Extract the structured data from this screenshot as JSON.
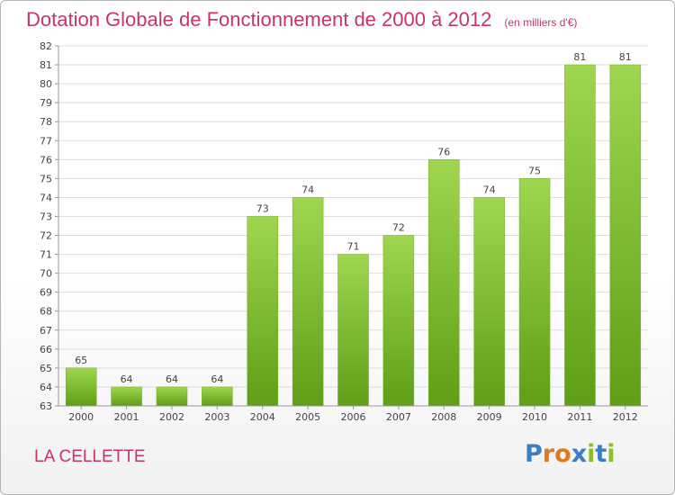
{
  "title": "Dotation Globale de Fonctionnement de 2000 à 2012",
  "unit": "(en milliers d'€)",
  "commune": "LA CELLETTE",
  "logo": {
    "text": "Proxiti",
    "letters": [
      "P",
      "r",
      "o",
      "x",
      "i",
      "t",
      "i"
    ],
    "colors": [
      "#3a7fc4",
      "#e07a1f",
      "#e07a1f",
      "#3a7fc4",
      "#8cbf2a",
      "#3a7fc4",
      "#8cbf2a"
    ]
  },
  "colors": {
    "title": "#c8336a",
    "bar_top": "#9fd650",
    "bar_bottom": "#5f9e16",
    "grid": "#dddddd"
  },
  "chart_data": {
    "type": "bar",
    "categories": [
      "2000",
      "2001",
      "2002",
      "2003",
      "2004",
      "2005",
      "2006",
      "2007",
      "2008",
      "2009",
      "2010",
      "2011",
      "2012"
    ],
    "values": [
      65,
      64,
      64,
      64,
      73,
      74,
      71,
      72,
      76,
      74,
      75,
      81,
      81
    ],
    "title": "Dotation Globale de Fonctionnement de 2000 à 2012",
    "xlabel": "",
    "ylabel": "",
    "ylim": [
      63,
      82
    ],
    "yticks": [
      63,
      64,
      65,
      66,
      67,
      68,
      69,
      70,
      71,
      72,
      73,
      74,
      75,
      76,
      77,
      78,
      79,
      80,
      81,
      82
    ],
    "grid": true,
    "legend": "none"
  }
}
